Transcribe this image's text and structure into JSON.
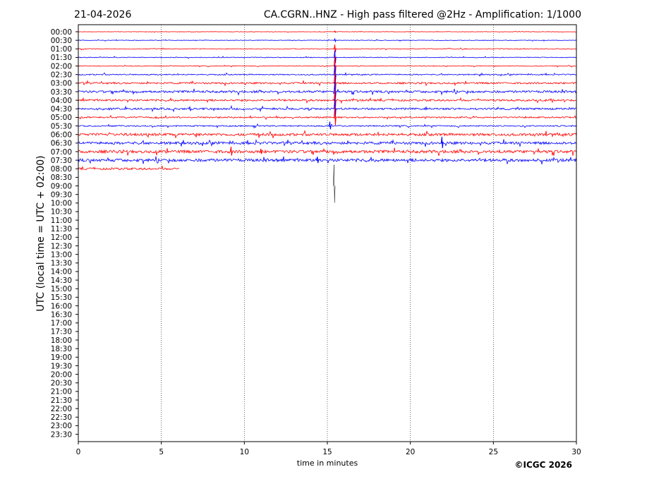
{
  "header": {
    "date": "21-04-2026",
    "title": "CA.CGRN..HNZ - High pass filtered @2Hz - Amplification: 1/1000"
  },
  "footer": {
    "copyright": "©ICGC 2026"
  },
  "chart_data": {
    "type": "line",
    "title": "CA.CGRN..HNZ - High pass filtered @2Hz - Amplification: 1/1000",
    "xlabel": "time in minutes",
    "ylabel": "UTC (local time = UTC + 02:00)",
    "xlim": [
      0,
      30
    ],
    "xticks": [
      "0",
      "5",
      "10",
      "15",
      "20",
      "25",
      "30"
    ],
    "vertical_gridlines_at_minutes": [
      5,
      10,
      15,
      20,
      25
    ],
    "row_labels": [
      "00:00",
      "00:30",
      "01:00",
      "01:30",
      "02:00",
      "02:30",
      "03:00",
      "03:30",
      "04:00",
      "04:30",
      "05:00",
      "05:30",
      "06:00",
      "06:30",
      "07:00",
      "07:30",
      "08:00",
      "08:30",
      "09:00",
      "09:30",
      "10:00",
      "10:30",
      "11:00",
      "11:30",
      "12:00",
      "12:30",
      "13:00",
      "13:30",
      "14:00",
      "14:30",
      "15:00",
      "15:30",
      "16:00",
      "16:30",
      "17:00",
      "17:30",
      "18:00",
      "18:30",
      "19:00",
      "19:30",
      "20:00",
      "20:30",
      "21:00",
      "21:30",
      "22:00",
      "22:30",
      "23:00",
      "23:30"
    ],
    "series_colors": [
      "#ff0000",
      "#0000ff"
    ],
    "traces": [
      {
        "row": "00:00",
        "color": "#ff0000",
        "end_minute": 30,
        "noise": 0.3
      },
      {
        "row": "00:30",
        "color": "#0000ff",
        "end_minute": 30,
        "noise": 0.4
      },
      {
        "row": "01:00",
        "color": "#ff0000",
        "end_minute": 30,
        "noise": 0.5
      },
      {
        "row": "01:30",
        "color": "#0000ff",
        "end_minute": 30,
        "noise": 0.5
      },
      {
        "row": "02:00",
        "color": "#ff0000",
        "end_minute": 30,
        "noise": 0.5
      },
      {
        "row": "02:30",
        "color": "#0000ff",
        "end_minute": 30,
        "noise": 0.8
      },
      {
        "row": "03:00",
        "color": "#ff0000",
        "end_minute": 30,
        "noise": 1.2
      },
      {
        "row": "03:30",
        "color": "#0000ff",
        "end_minute": 30,
        "noise": 1.5
      },
      {
        "row": "04:00",
        "color": "#ff0000",
        "end_minute": 30,
        "noise": 1.3
      },
      {
        "row": "04:30",
        "color": "#0000ff",
        "end_minute": 30,
        "noise": 1.3
      },
      {
        "row": "05:00",
        "color": "#ff0000",
        "end_minute": 30,
        "noise": 1.0
      },
      {
        "row": "05:30",
        "color": "#0000ff",
        "end_minute": 30,
        "noise": 0.9
      },
      {
        "row": "06:00",
        "color": "#ff0000",
        "end_minute": 30,
        "noise": 1.8
      },
      {
        "row": "06:30",
        "color": "#0000ff",
        "end_minute": 30,
        "noise": 1.8
      },
      {
        "row": "07:00",
        "color": "#ff0000",
        "end_minute": 30,
        "noise": 2.0
      },
      {
        "row": "07:30",
        "color": "#0000ff",
        "end_minute": 30,
        "noise": 2.0
      },
      {
        "row": "08:00",
        "color": "#ff0000",
        "end_minute": 6.1,
        "noise": 1.4
      }
    ],
    "events": [
      {
        "row": "00:00",
        "minute": 15.45,
        "amplitude": 1.0
      },
      {
        "row": "00:30",
        "minute": 15.45,
        "amplitude": 2.0
      },
      {
        "row": "01:00",
        "minute": 15.45,
        "amplitude": 6.0
      },
      {
        "row": "01:30",
        "minute": 15.45,
        "amplitude": 10.0
      },
      {
        "row": "02:00",
        "minute": 15.45,
        "amplitude": 14.0
      },
      {
        "row": "02:30",
        "minute": 15.45,
        "amplitude": 14.0
      },
      {
        "row": "03:00",
        "minute": 15.45,
        "amplitude": 14.0
      },
      {
        "row": "03:30",
        "minute": 15.45,
        "amplitude": 14.0
      },
      {
        "row": "04:00",
        "minute": 15.45,
        "amplitude": 14.0
      },
      {
        "row": "04:30",
        "minute": 15.45,
        "amplitude": 14.0
      },
      {
        "row": "05:00",
        "minute": 15.45,
        "amplitude": 14.0
      },
      {
        "row": "05:30",
        "minute": 15.15,
        "amplitude": 6.0
      },
      {
        "row": "06:30",
        "minute": 21.9,
        "amplitude": 9.0
      },
      {
        "row": "07:00",
        "minute": 9.2,
        "amplitude": 7.0
      },
      {
        "row": "07:00",
        "minute": 11.0,
        "amplitude": 4.0
      },
      {
        "row": "07:30",
        "minute": 14.4,
        "amplitude": 5.0
      },
      {
        "row": "09:00",
        "minute": 15.4,
        "amplitude": 30.0
      }
    ]
  }
}
